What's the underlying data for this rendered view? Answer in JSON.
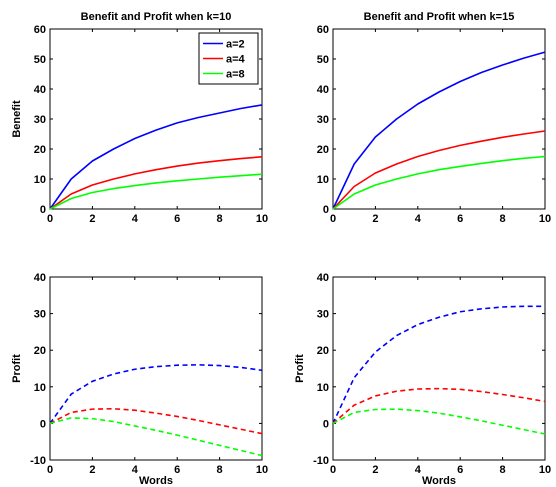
{
  "chart_data": [
    {
      "type": "line",
      "title": "Benefit and Profit when k=10",
      "xlabel": "",
      "ylabel": "Benefit",
      "xlim": [
        0,
        10
      ],
      "ylim": [
        0,
        60
      ],
      "xticks": [
        0,
        2,
        4,
        6,
        8,
        10
      ],
      "yticks": [
        0,
        10,
        20,
        30,
        40,
        50,
        60
      ],
      "x": [
        0,
        1,
        2,
        3,
        4,
        5,
        6,
        7,
        8,
        9,
        10
      ],
      "legend": {
        "position": "top-right"
      },
      "series": [
        {
          "name": "a=2",
          "color": "#0000ff",
          "dash": "solid",
          "values": [
            0,
            10,
            16,
            20,
            23.5,
            26.3,
            28.7,
            30.5,
            32,
            33.5,
            34.7
          ]
        },
        {
          "name": "a=4",
          "color": "#ff0000",
          "dash": "solid",
          "values": [
            0,
            5,
            8,
            10,
            11.7,
            13.1,
            14.3,
            15.3,
            16.1,
            16.8,
            17.4
          ]
        },
        {
          "name": "a=8",
          "color": "#00ff00",
          "dash": "solid",
          "values": [
            0,
            3.5,
            5.5,
            6.8,
            7.8,
            8.7,
            9.4,
            10,
            10.6,
            11.1,
            11.6
          ]
        }
      ]
    },
    {
      "type": "line",
      "title": "Benefit and Profit when k=15",
      "xlabel": "",
      "ylabel": "",
      "xlim": [
        0,
        10
      ],
      "ylim": [
        0,
        60
      ],
      "xticks": [
        0,
        2,
        4,
        6,
        8,
        10
      ],
      "yticks": [
        0,
        10,
        20,
        30,
        40,
        50,
        60
      ],
      "x": [
        0,
        1,
        2,
        3,
        4,
        5,
        6,
        7,
        8,
        9,
        10
      ],
      "series": [
        {
          "color": "#0000ff",
          "dash": "solid",
          "values": [
            0,
            15,
            24,
            30,
            35,
            39,
            42.5,
            45.5,
            48,
            50.3,
            52.3
          ]
        },
        {
          "color": "#ff0000",
          "dash": "solid",
          "values": [
            0,
            7.5,
            12,
            15,
            17.5,
            19.5,
            21.2,
            22.6,
            23.9,
            25,
            26
          ]
        },
        {
          "color": "#00ff00",
          "dash": "solid",
          "values": [
            0,
            5,
            8,
            10,
            11.7,
            13.1,
            14.2,
            15.2,
            16.1,
            16.9,
            17.5
          ]
        }
      ]
    },
    {
      "type": "line",
      "title": "",
      "xlabel": "Words",
      "ylabel": "Profit",
      "xlim": [
        0,
        10
      ],
      "ylim": [
        -10,
        40
      ],
      "xticks": [
        0,
        2,
        4,
        6,
        8,
        10
      ],
      "yticks": [
        -10,
        0,
        10,
        20,
        30,
        40
      ],
      "x": [
        0,
        1,
        2,
        3,
        4,
        5,
        6,
        7,
        8,
        9,
        10
      ],
      "series": [
        {
          "color": "#0000ff",
          "dash": "dashed",
          "values": [
            0,
            8,
            11.5,
            13.5,
            14.8,
            15.5,
            15.9,
            16,
            15.8,
            15.3,
            14.5
          ]
        },
        {
          "color": "#ff0000",
          "dash": "dashed",
          "values": [
            0,
            3,
            3.9,
            4,
            3.6,
            2.8,
            1.9,
            0.8,
            -0.4,
            -1.6,
            -2.8
          ]
        },
        {
          "color": "#00ff00",
          "dash": "dashed",
          "values": [
            0,
            1.5,
            1.3,
            0.5,
            -0.7,
            -1.9,
            -3.2,
            -4.6,
            -6,
            -7.4,
            -8.8
          ]
        }
      ]
    },
    {
      "type": "line",
      "title": "",
      "xlabel": "Words",
      "ylabel": "Profit",
      "xlim": [
        0,
        10
      ],
      "ylim": [
        -10,
        40
      ],
      "xticks": [
        0,
        2,
        4,
        6,
        8,
        10
      ],
      "yticks": [
        -10,
        0,
        10,
        20,
        30,
        40
      ],
      "x": [
        0,
        1,
        2,
        3,
        4,
        5,
        6,
        7,
        8,
        9,
        10
      ],
      "series": [
        {
          "color": "#0000ff",
          "dash": "dashed",
          "values": [
            0,
            12.5,
            19.5,
            24,
            27,
            29,
            30.5,
            31.3,
            31.8,
            32,
            32
          ]
        },
        {
          "color": "#ff0000",
          "dash": "dashed",
          "values": [
            0,
            5,
            7.5,
            8.8,
            9.4,
            9.5,
            9.3,
            8.7,
            7.9,
            7,
            6
          ]
        },
        {
          "color": "#00ff00",
          "dash": "dashed",
          "values": [
            0,
            3,
            3.8,
            3.9,
            3.5,
            2.8,
            1.8,
            0.7,
            -0.5,
            -1.7,
            -2.9
          ]
        }
      ]
    }
  ]
}
